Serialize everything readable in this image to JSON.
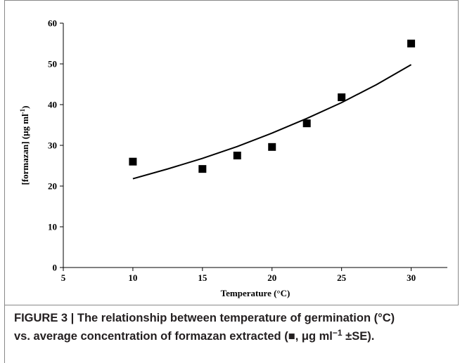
{
  "chart_data": {
    "type": "scatter",
    "x": [
      10,
      15,
      17.5,
      20,
      22.5,
      25,
      30
    ],
    "values": [
      26,
      24.2,
      27.5,
      29.6,
      35.4,
      41.8,
      55
    ],
    "color": "#000000",
    "trend_line": {
      "x": [
        10,
        12.5,
        15,
        17.5,
        20,
        22.5,
        25,
        27.5,
        30
      ],
      "values": [
        21.8,
        24.2,
        26.8,
        29.7,
        33.0,
        36.6,
        40.5,
        44.9,
        49.8
      ],
      "color": "#000000"
    },
    "xlim": [
      5,
      32.6
    ],
    "ylim": [
      0,
      60
    ],
    "xticks": [
      5,
      10,
      15,
      20,
      25,
      30
    ],
    "yticks": [
      0,
      10,
      20,
      30,
      40,
      50,
      60
    ],
    "x_label": "Temperature (°C)",
    "y_label": {
      "text": "[formazan] (μg ml",
      "sup": "-1",
      "end": ")"
    }
  },
  "caption": {
    "line1": "FIGURE 3 | The relationship between temperature of germination (°C)",
    "line2_start": "vs. average concentration of formazan extracted (",
    "symbol": "■",
    "line2_mid": ", μg ml",
    "sup": "−1",
    "line2_end": " ±SE)."
  }
}
